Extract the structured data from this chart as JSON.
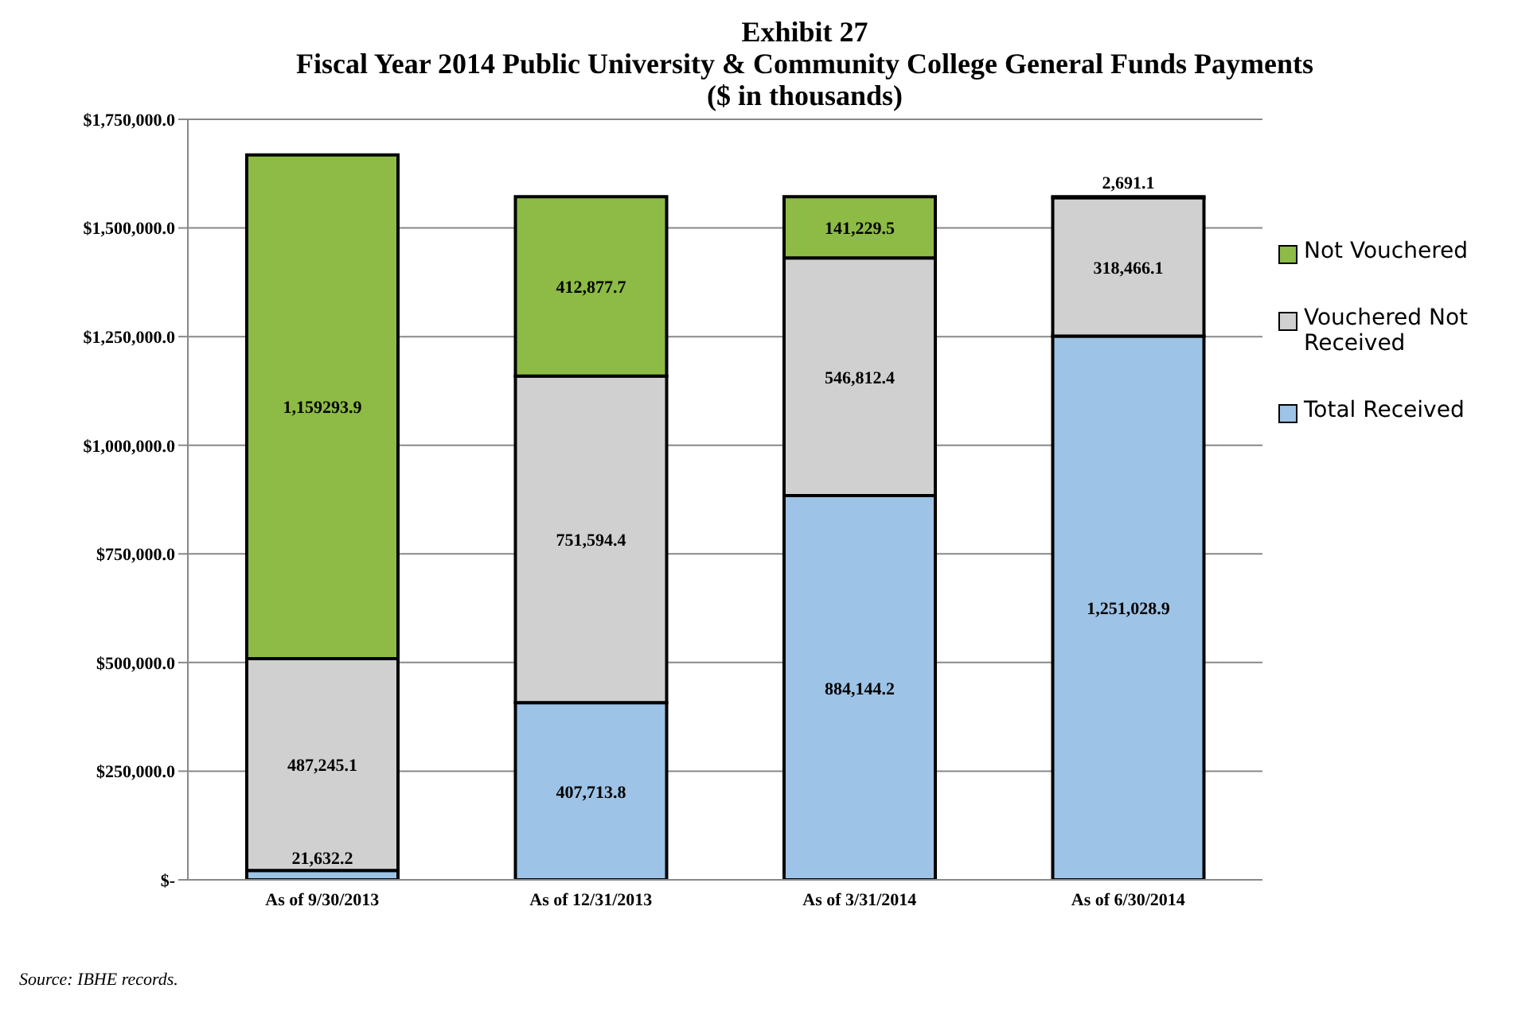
{
  "chart_data": {
    "type": "bar",
    "stacked": true,
    "title": "Exhibit 27",
    "subtitle": "Fiscal Year 2014 Public University & Community College General Funds Payments\n($ in thousands)",
    "categories": [
      "As of 9/30/2013",
      "As of 12/31/2013",
      "As of 3/31/2014",
      "As of 6/30/2014"
    ],
    "series": [
      {
        "name": "Total Received",
        "color": "#9dc3e6",
        "values": [
          21632.2,
          407713.8,
          884144.2,
          1251028.9
        ],
        "value_labels": [
          "21,632.2",
          "407,713.8",
          "884,144.2",
          "1,251,028.9"
        ]
      },
      {
        "name": "Vouchered Not Received",
        "color": "#d0d0d0",
        "values": [
          487245.1,
          751594.4,
          546812.4,
          318466.1
        ],
        "value_labels": [
          "487,245.1",
          "751,594.4",
          "546,812.4",
          "318,466.1"
        ]
      },
      {
        "name": "Not Vouchered",
        "color": "#8dbb45",
        "values": [
          1159293.9,
          412877.7,
          141229.5,
          2691.1
        ],
        "value_labels": [
          "1,159293.9",
          "412,877.7",
          "141,229.5",
          "2,691.1"
        ]
      }
    ],
    "ylim": [
      0,
      1750000
    ],
    "yticks": [
      {
        "value": 0,
        "label": "$-"
      },
      {
        "value": 250000,
        "label": "$250,000.0"
      },
      {
        "value": 500000,
        "label": "$500,000.0"
      },
      {
        "value": 750000,
        "label": "$750,000.0"
      },
      {
        "value": 1000000,
        "label": "$1,000,000.0"
      },
      {
        "value": 1250000,
        "label": "$1,250,000.0"
      },
      {
        "value": 1500000,
        "label": "$1,500,000.0"
      },
      {
        "value": 1750000,
        "label": "$1,750,000.0"
      }
    ],
    "grid": "y",
    "legend": "right",
    "annotations": [
      "Source: IBHE records."
    ]
  }
}
